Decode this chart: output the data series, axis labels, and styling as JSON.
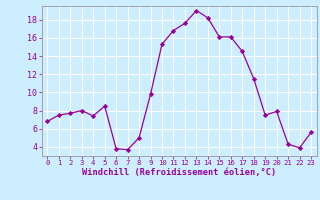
{
  "x": [
    0,
    1,
    2,
    3,
    4,
    5,
    6,
    7,
    8,
    9,
    10,
    11,
    12,
    13,
    14,
    15,
    16,
    17,
    18,
    19,
    20,
    21,
    22,
    23
  ],
  "y": [
    6.8,
    7.5,
    7.7,
    8.0,
    7.4,
    8.5,
    3.8,
    3.7,
    5.0,
    9.8,
    15.3,
    16.8,
    17.6,
    19.0,
    18.2,
    16.1,
    16.1,
    14.5,
    11.5,
    7.5,
    7.9,
    4.3,
    3.9,
    5.6
  ],
  "line_color": "#990099",
  "marker": "D",
  "marker_size": 2.2,
  "bg_color": "#cceeff",
  "grid_color": "#ffffff",
  "xlabel": "Windchill (Refroidissement éolien,°C)",
  "xlabel_color": "#990099",
  "tick_color": "#990099",
  "xlim": [
    -0.5,
    23.5
  ],
  "ylim": [
    3.0,
    19.5
  ],
  "yticks": [
    4,
    6,
    8,
    10,
    12,
    14,
    16,
    18
  ],
  "xticks": [
    0,
    1,
    2,
    3,
    4,
    5,
    6,
    7,
    8,
    9,
    10,
    11,
    12,
    13,
    14,
    15,
    16,
    17,
    18,
    19,
    20,
    21,
    22,
    23
  ],
  "figsize": [
    3.2,
    2.0
  ],
  "dpi": 100
}
